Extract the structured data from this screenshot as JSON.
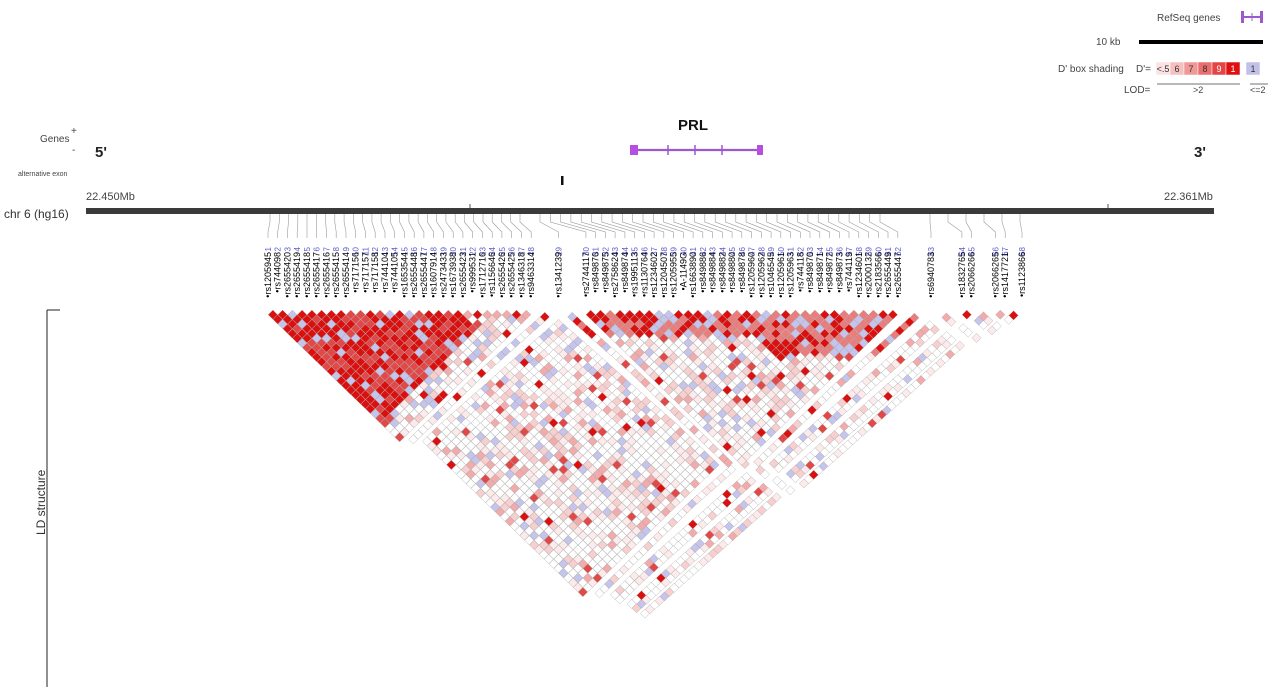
{
  "legend": {
    "refseq_label": "RefSeq genes",
    "scale_label": "10 kb",
    "shading_label": "D' box shading",
    "d_prefix": "D'=",
    "d_values": [
      "<.5",
      "6",
      "7",
      "8",
      "9",
      "1",
      "1"
    ],
    "d_colors": [
      "#fbe3e3",
      "#f6c0c0",
      "#f09898",
      "#ea6e6e",
      "#e44444",
      "#e01010",
      "#c0c0e8"
    ],
    "lod_label": "LOD=",
    "lod_high": ">2",
    "lod_low": "<=2"
  },
  "gene_track": {
    "genes_label": "Genes",
    "plus": "+",
    "minus": "-",
    "alt_exon_label": "alternative exon",
    "five_prime": "5'",
    "three_prime": "3'",
    "gene_name": "PRL",
    "gene_color": "#9b59d0"
  },
  "chromosome": {
    "label": "chr 6 (hg16)",
    "left_pos": "22.450Mb",
    "right_pos": "22.361Mb"
  },
  "ld": {
    "structure_label": "LD structure"
  },
  "snps": [
    {
      "n": "1",
      "id": "rs1205945"
    },
    {
      "n": "2",
      "id": "rs744098"
    },
    {
      "n": "3",
      "id": "rs2655420"
    },
    {
      "n": "4",
      "id": "rs2655419"
    },
    {
      "n": "5",
      "id": "rs2655418"
    },
    {
      "n": "6",
      "id": "rs2655417"
    },
    {
      "n": "7",
      "id": "rs2655416"
    },
    {
      "n": "8",
      "id": "rs2655415"
    },
    {
      "n": "9",
      "id": "rs2655414"
    },
    {
      "n": "10",
      "id": "rs717156"
    },
    {
      "n": "11",
      "id": "rs717157"
    },
    {
      "n": "12",
      "id": "rs717158"
    },
    {
      "n": "13",
      "id": "rs744104"
    },
    {
      "n": "14",
      "id": "rs744105"
    },
    {
      "n": "15",
      "id": "rs1653544"
    },
    {
      "n": "16",
      "id": "rs2655448"
    },
    {
      "n": "17",
      "id": "rs2655447"
    },
    {
      "n": "18",
      "id": "rs1607914"
    },
    {
      "n": "19",
      "id": "rs2473433"
    },
    {
      "n": "20",
      "id": "rs1673938"
    },
    {
      "n": "21",
      "id": "rs2655423"
    },
    {
      "n": "22",
      "id": "rs999531"
    },
    {
      "n": "23",
      "id": "rs1712716"
    },
    {
      "n": "24",
      "id": "rs1156646"
    },
    {
      "n": "25",
      "id": "rs2655426"
    },
    {
      "n": "26",
      "id": "rs2655425"
    },
    {
      "n": "27",
      "id": "rs1346318"
    },
    {
      "n": "28",
      "id": "rs9463314"
    },
    {
      "n": "29",
      "id": "rs1341239"
    },
    {
      "n": "30",
      "id": "rs2744117"
    },
    {
      "n": "31",
      "id": "rs849876"
    },
    {
      "n": "32",
      "id": "rs849875"
    },
    {
      "n": "33",
      "id": "rs2758624"
    },
    {
      "n": "34",
      "id": "rs849874"
    },
    {
      "n": "35",
      "id": "rs1995113"
    },
    {
      "n": "36",
      "id": "rs1130764"
    },
    {
      "n": "37",
      "id": "rs1234602"
    },
    {
      "n": "38",
      "id": "rs1204507"
    },
    {
      "n": "39",
      "id": "rs1205955"
    },
    {
      "n": "40",
      "id": "A-1149G"
    },
    {
      "n": "41",
      "id": "rs1663890"
    },
    {
      "n": "42",
      "id": "rs849886"
    },
    {
      "n": "43",
      "id": "rs849884"
    },
    {
      "n": "44",
      "id": "rs849882"
    },
    {
      "n": "45",
      "id": "rs849880"
    },
    {
      "n": "46",
      "id": "rs849878"
    },
    {
      "n": "47",
      "id": "rs1205960"
    },
    {
      "n": "48",
      "id": "rs1205962"
    },
    {
      "n": "49",
      "id": "rs1046545"
    },
    {
      "n": "50",
      "id": "rs1205961"
    },
    {
      "n": "51",
      "id": "rs1205963"
    },
    {
      "n": "52",
      "id": "rs744118"
    },
    {
      "n": "53",
      "id": "rs849870"
    },
    {
      "n": "54",
      "id": "rs849871"
    },
    {
      "n": "55",
      "id": "rs849872"
    },
    {
      "n": "56",
      "id": "rs849873"
    },
    {
      "n": "57",
      "id": "rs744119"
    },
    {
      "n": "58",
      "id": "rs1234601"
    },
    {
      "n": "59",
      "id": "rs2000132"
    },
    {
      "n": "60",
      "id": "rs2183566"
    },
    {
      "n": "61",
      "id": "rs2655449"
    },
    {
      "n": "62",
      "id": "rs2655447"
    },
    {
      "n": "63",
      "id": "rs6940783"
    },
    {
      "n": "64",
      "id": "rs1832765"
    },
    {
      "n": "65",
      "id": "rs2066266"
    },
    {
      "n": "66",
      "id": "rs2066265"
    },
    {
      "n": "67",
      "id": "rs1417721"
    },
    {
      "n": "68",
      "id": "rs1123866"
    }
  ]
}
